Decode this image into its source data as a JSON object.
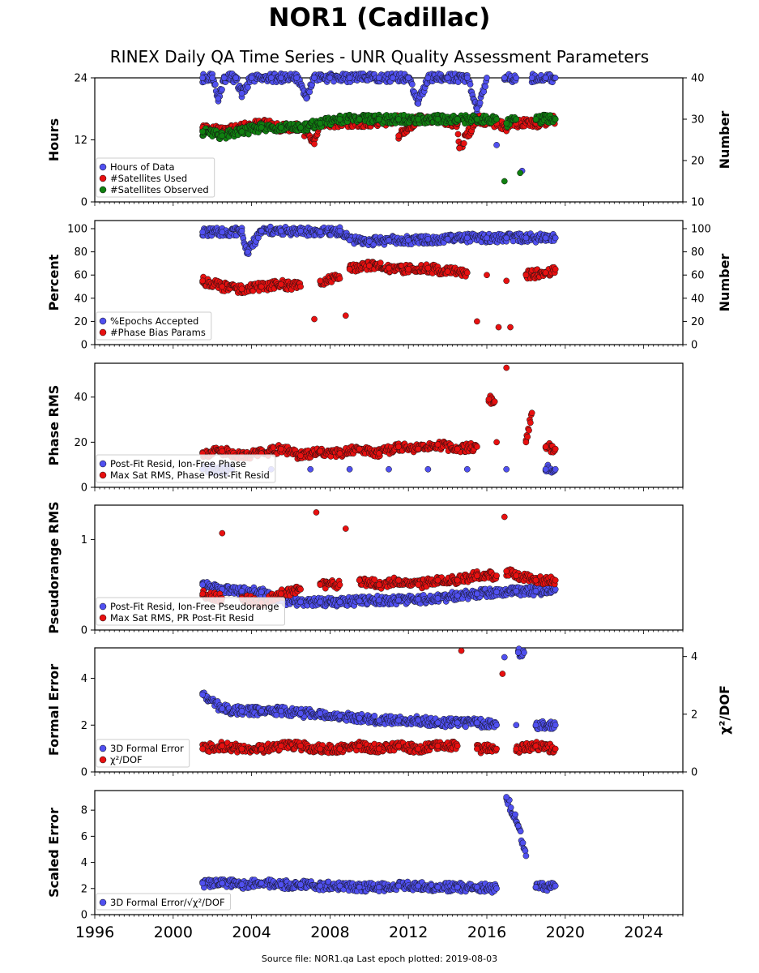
{
  "title": "NOR1 (Cadillac)",
  "subtitle": "RINEX Daily QA Time Series - UNR Quality Assessment Parameters",
  "footer": "Source file: NOR1.qa Last epoch plotted: 2019-08-03",
  "colors": {
    "blue": "#5050f0",
    "red": "#e81010",
    "green": "#108010"
  },
  "chart_data": [
    {
      "type": "scatter",
      "ylabel": "Hours",
      "ylabel_right": "Number",
      "ylim": [
        0,
        24
      ],
      "yticks": [
        "0",
        "12",
        "24"
      ],
      "ylim_right": [
        10,
        40
      ],
      "yticks_right": [
        "10",
        "20",
        "30",
        "40"
      ],
      "legend_position": "lower-left",
      "xlim": [
        1996,
        2026
      ],
      "series": [
        {
          "name": "Hours of Data",
          "color": "blue",
          "axis": "left",
          "x": [
            2001.5,
            2002.0,
            2002.6,
            2003.2,
            2004.0,
            2005.0,
            2005.5,
            2006.3,
            2007.2,
            2008.0,
            2009.0,
            2010.5,
            2011.2,
            2012.0,
            2013.0,
            2014.0,
            2015.0,
            2016.0,
            2016.9,
            2017.5,
            2018.3,
            2019.0,
            2019.5,
            2002.3,
            2003.5,
            2006.8,
            2012.5,
            2015.5,
            2016.5,
            2017.8
          ],
          "y": [
            24,
            24,
            24,
            24,
            24,
            24,
            24,
            24,
            24,
            24,
            24,
            24,
            24,
            24,
            24,
            24,
            24,
            24,
            24,
            24,
            24,
            24,
            24,
            20,
            21,
            20,
            19,
            18,
            11,
            6
          ]
        },
        {
          "name": "#Satellites Used",
          "color": "red",
          "axis": "right",
          "x": [
            2001.5,
            2002.5,
            2003.5,
            2004.5,
            2005.5,
            2006.5,
            2007.5,
            2008.5,
            2009.5,
            2010.5,
            2011.5,
            2012.5,
            2013.5,
            2014.5,
            2015.5,
            2016.5,
            2017.0,
            2017.5,
            2018.5,
            2019.5,
            2007.2,
            2011.5,
            2014.6
          ],
          "y": [
            28,
            27,
            28,
            29,
            28,
            28,
            29,
            29,
            29,
            29,
            30,
            30,
            30,
            29,
            30,
            29,
            28,
            29,
            29,
            30,
            24,
            26,
            23
          ]
        },
        {
          "name": "#Satellites Observed",
          "color": "green",
          "axis": "right",
          "x": [
            2001.5,
            2002.5,
            2003.5,
            2004.5,
            2005.5,
            2006.5,
            2007.5,
            2008.5,
            2009.5,
            2010.5,
            2011.5,
            2012.5,
            2013.5,
            2014.5,
            2015.5,
            2016.5,
            2017.0,
            2017.5,
            2018.5,
            2019.5,
            2016.9,
            2017.7
          ],
          "y": [
            27,
            26,
            27,
            28,
            28,
            28,
            29,
            30,
            30,
            30,
            30,
            30,
            30,
            30,
            30,
            30,
            29,
            30,
            30,
            30,
            15,
            17
          ]
        }
      ]
    },
    {
      "type": "scatter",
      "ylabel": "Percent",
      "ylabel_right": "Number",
      "ylim": [
        0,
        107
      ],
      "yticks": [
        "0",
        "20",
        "40",
        "60",
        "80",
        "100"
      ],
      "ylim_right": [
        0,
        107
      ],
      "yticks_right": [
        "0",
        "20",
        "40",
        "60",
        "80",
        "100"
      ],
      "legend_position": "lower-left",
      "xlim": [
        1996,
        2026
      ],
      "series": [
        {
          "name": "%Epochs Accepted",
          "color": "blue",
          "axis": "left",
          "x": [
            2001.5,
            2002.5,
            2003.5,
            2004.5,
            2005.5,
            2006.5,
            2007.5,
            2008.5,
            2009.0,
            2010.0,
            2011.0,
            2012.0,
            2013.0,
            2014.0,
            2015.0,
            2016.0,
            2017.0,
            2018.0,
            2019.0,
            2019.5,
            2003.8
          ],
          "y": [
            97,
            97,
            98,
            98,
            98,
            98,
            97,
            98,
            90,
            89,
            90,
            90,
            91,
            91,
            92,
            92,
            92,
            92,
            92,
            92,
            80
          ]
        },
        {
          "name": "#Phase Bias Params",
          "color": "red",
          "axis": "right",
          "x": [
            2001.5,
            2002.5,
            2003.5,
            2004.5,
            2005.5,
            2006.5,
            2007.5,
            2008.5,
            2009.0,
            2010.0,
            2011.0,
            2012.0,
            2013.0,
            2014.0,
            2015.0,
            2016.0,
            2017.0,
            2018.0,
            2019.0,
            2019.5,
            2007.2,
            2008.8,
            2015.5,
            2016.6,
            2017.2
          ],
          "y": [
            55,
            50,
            48,
            50,
            52,
            50,
            55,
            57,
            65,
            68,
            66,
            65,
            66,
            63,
            62,
            60,
            55,
            60,
            62,
            65,
            22,
            25,
            20,
            15,
            15
          ]
        }
      ]
    },
    {
      "type": "scatter",
      "ylabel": "Phase RMS",
      "ylim": [
        0,
        55
      ],
      "yticks": [
        "0",
        "20",
        "40"
      ],
      "legend_position": "lower-left",
      "xlim": [
        1996,
        2026
      ],
      "series": [
        {
          "name": "Post-Fit Resid, Ion-Free Phase",
          "color": "blue",
          "axis": "left",
          "x": [
            2001.5,
            2003.0,
            2005.0,
            2007.0,
            2009.0,
            2011.0,
            2013.0,
            2015.0,
            2017.0,
            2019.0,
            2019.5
          ],
          "y": [
            8,
            8,
            8,
            8,
            8,
            8,
            8,
            8,
            8,
            8,
            8
          ]
        },
        {
          "name": "Max Sat RMS, Phase Post-Fit Resid",
          "color": "red",
          "axis": "left",
          "x": [
            2001.5,
            2002.5,
            2003.5,
            2004.5,
            2005.5,
            2006.5,
            2007.5,
            2008.5,
            2009.5,
            2010.5,
            2011.5,
            2012.5,
            2013.5,
            2014.5,
            2015.5,
            2016.5,
            2017.0,
            2018.0,
            2019.0,
            2019.5,
            2016.1,
            2016.4,
            2018.3
          ],
          "y": [
            15,
            16,
            14,
            15,
            17,
            14,
            16,
            15,
            17,
            15,
            18,
            17,
            19,
            17,
            18,
            20,
            53,
            20,
            18,
            17,
            39,
            38,
            33
          ]
        }
      ]
    },
    {
      "type": "scatter",
      "ylabel": "Pseudorange RMS",
      "ylim": [
        0,
        1.38
      ],
      "yticks": [
        "0",
        "1"
      ],
      "legend_position": "lower-left",
      "xlim": [
        1996,
        2026
      ],
      "series": [
        {
          "name": "Post-Fit Resid, Ion-Free Pseudorange",
          "color": "blue",
          "axis": "left",
          "x": [
            2001.5,
            2002.5,
            2003.5,
            2004.5,
            2005.5,
            2006.5,
            2007.5,
            2008.5,
            2009.5,
            2010.5,
            2011.5,
            2012.5,
            2013.5,
            2014.5,
            2015.5,
            2016.5,
            2017.5,
            2018.5,
            2019.5
          ],
          "y": [
            0.5,
            0.45,
            0.43,
            0.42,
            0.32,
            0.31,
            0.31,
            0.31,
            0.32,
            0.33,
            0.33,
            0.34,
            0.35,
            0.38,
            0.4,
            0.42,
            0.43,
            0.43,
            0.45
          ]
        },
        {
          "name": "Max Sat RMS, PR Post-Fit Resid",
          "color": "red",
          "axis": "left",
          "x": [
            2001.5,
            2002.5,
            2003.5,
            2004.5,
            2005.5,
            2006.5,
            2007.5,
            2008.5,
            2009.5,
            2010.5,
            2011.5,
            2012.5,
            2013.5,
            2014.5,
            2015.5,
            2016.5,
            2017.0,
            2017.5,
            2018.5,
            2019.5,
            2002.5,
            2007.3,
            2008.8,
            2016.9
          ],
          "y": [
            0.4,
            0.35,
            0.35,
            0.3,
            0.4,
            0.45,
            0.5,
            0.5,
            0.55,
            0.5,
            0.55,
            0.5,
            0.55,
            0.55,
            0.6,
            0.6,
            0.65,
            0.6,
            0.55,
            0.55,
            1.07,
            1.3,
            1.12,
            1.25
          ]
        }
      ]
    },
    {
      "type": "scatter",
      "ylabel": "Formal Error",
      "ylabel_right": "χ²/DOF",
      "ylim": [
        0,
        5.3
      ],
      "yticks": [
        "0",
        "2",
        "4"
      ],
      "ylim_right": [
        0,
        4.3
      ],
      "yticks_right": [
        "0",
        "2",
        "4"
      ],
      "legend_position": "lower-left",
      "xlim": [
        1996,
        2026
      ],
      "series": [
        {
          "name": "3D Formal Error",
          "color": "blue",
          "axis": "left",
          "x": [
            2001.5,
            2002.5,
            2003.5,
            2004.5,
            2005.5,
            2006.5,
            2007.5,
            2008.5,
            2009.5,
            2010.5,
            2011.5,
            2012.5,
            2013.5,
            2014.5,
            2015.5,
            2016.5,
            2017.5,
            2018.5,
            2019.5,
            2016.9,
            2017.6,
            2017.9
          ],
          "y": [
            3.3,
            2.7,
            2.6,
            2.6,
            2.6,
            2.5,
            2.5,
            2.4,
            2.3,
            2.2,
            2.2,
            2.2,
            2.1,
            2.1,
            2.1,
            2.0,
            2.0,
            2.0,
            2.0,
            4.9,
            5.1,
            5.1
          ]
        },
        {
          "name": "χ²/DOF",
          "color": "red",
          "axis": "right",
          "x": [
            2001.5,
            2002.5,
            2003.5,
            2004.5,
            2005.5,
            2006.5,
            2007.5,
            2008.5,
            2009.5,
            2010.5,
            2011.5,
            2012.5,
            2013.5,
            2014.5,
            2015.5,
            2016.5,
            2017.5,
            2018.5,
            2019.5,
            2014.7,
            2016.8
          ],
          "y": [
            0.8,
            0.9,
            0.8,
            0.8,
            0.9,
            0.9,
            0.8,
            0.8,
            0.9,
            0.8,
            0.9,
            0.8,
            0.9,
            0.9,
            0.8,
            0.8,
            0.8,
            0.9,
            0.8,
            4.2,
            3.4
          ]
        }
      ]
    },
    {
      "type": "scatter",
      "ylabel": "Scaled Error",
      "ylim": [
        0,
        9.5
      ],
      "yticks": [
        "0",
        "2",
        "4",
        "6",
        "8"
      ],
      "legend_position": "lower-left",
      "xlim": [
        1996,
        2026
      ],
      "xticks": [
        "1996",
        "2000",
        "2004",
        "2008",
        "2012",
        "2016",
        "2020",
        "2024"
      ],
      "series": [
        {
          "name": "3D Formal Error/√χ²/DOF",
          "color": "blue",
          "axis": "left",
          "x": [
            2001.5,
            2002.5,
            2003.5,
            2004.5,
            2005.5,
            2006.5,
            2007.5,
            2008.5,
            2009.5,
            2010.5,
            2011.5,
            2012.5,
            2013.5,
            2014.5,
            2015.5,
            2016.5,
            2017.0,
            2017.6,
            2018.0,
            2018.5,
            2019.5
          ],
          "y": [
            2.4,
            2.4,
            2.3,
            2.4,
            2.3,
            2.3,
            2.2,
            2.2,
            2.1,
            2.1,
            2.2,
            2.2,
            2.1,
            2.1,
            2.1,
            2.0,
            9.0,
            6.8,
            4.5,
            2.1,
            2.2
          ]
        }
      ]
    }
  ]
}
